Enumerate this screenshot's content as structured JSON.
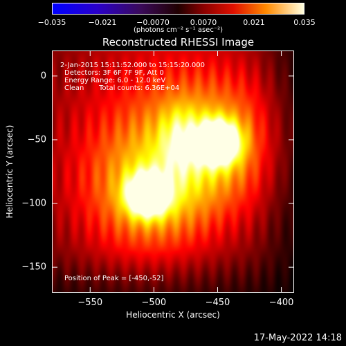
{
  "colorbar": {
    "ticks": [
      "-0.035",
      "-0.021",
      "-0.0070",
      "0.0070",
      "0.021",
      "0.035"
    ],
    "units": "(photons cm⁻² s⁻¹ asec⁻²)",
    "range": [
      -0.035,
      0.035
    ]
  },
  "title": "Reconstructed RHESSI Image",
  "info": {
    "line1": "2-Jan-2015 15:11:52.000 to 15:15:20.000",
    "line2": "Detectors: 3F 6F 7F 9F, Att 0",
    "line3": "Energy Range: 6.0 - 12.0 keV",
    "line4_method": "Clean",
    "line4_counts": "Total counts: 6.36E+04",
    "peak": "Position of Peak = [-450,-52]"
  },
  "timestamp": "17-May-2022 14:18",
  "chart_data": {
    "type": "heatmap",
    "title": "Reconstructed RHESSI Image",
    "xlabel": "Heliocentric X (arcsec)",
    "ylabel": "Heliocentric Y (arcsec)",
    "xlim": [
      -580,
      -390
    ],
    "ylim": [
      -170,
      20
    ],
    "x_ticks": [
      -550,
      -500,
      -450,
      -400
    ],
    "x_tick_labels": [
      "−550",
      "−500",
      "−450",
      "−400"
    ],
    "y_ticks": [
      0,
      -50,
      -100,
      -150
    ],
    "y_tick_labels": [
      "0",
      "−50",
      "−100",
      "−150"
    ],
    "colormap": "hot",
    "sources": [
      {
        "x": -450,
        "y": -52,
        "peak": 0.035
      },
      {
        "x": -505,
        "y": -93,
        "peak": 0.033
      }
    ],
    "peak_position": [
      -450,
      -52
    ]
  },
  "colors": {
    "background": "#000000",
    "foreground": "#ffffff"
  }
}
